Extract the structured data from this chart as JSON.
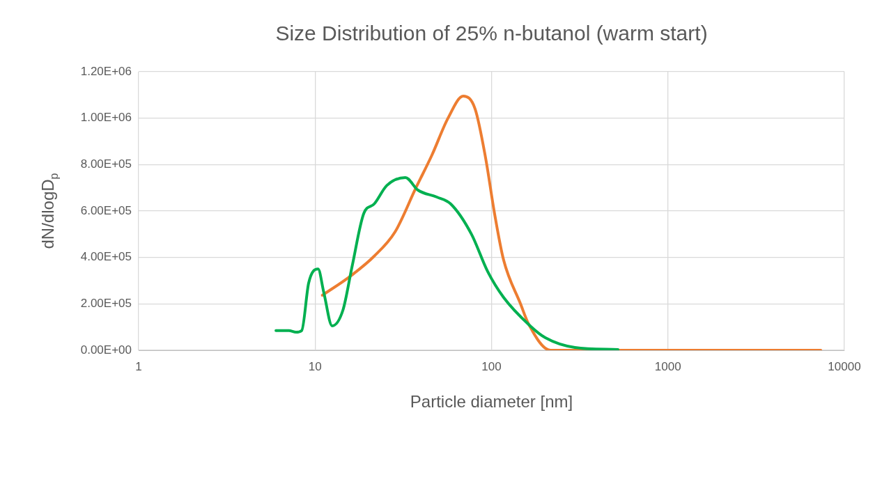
{
  "chart_data": {
    "type": "line",
    "title": "Size Distribution of 25% n-butanol (warm start)",
    "xlabel": "Particle diameter [nm]",
    "ylabel": "dN/dlogD$_{p}$",
    "log": "x",
    "xlim": [
      1,
      10000
    ],
    "xticks": [
      1,
      10,
      100,
      1000,
      10000
    ],
    "ylim": [
      0,
      1200000
    ],
    "yticks": [
      {
        "value": 0,
        "label": "0.00E+00"
      },
      {
        "value": 200000,
        "label": "2.00E+05"
      },
      {
        "value": 400000,
        "label": "4.00E+05"
      },
      {
        "value": 600000,
        "label": "6.00E+05"
      },
      {
        "value": 800000,
        "label": "8.00E+05"
      },
      {
        "value": 1000000,
        "label": "1.00E+06"
      },
      {
        "value": 1200000,
        "label": "1.20E+06"
      }
    ],
    "grid": true,
    "legend": false,
    "marker": "none",
    "line_style": "solid",
    "series": [
      {
        "color": "#00b050",
        "x": [
          6.0,
          7.1,
          7.8,
          8.4,
          9.2,
          10.4,
          11.2,
          12.5,
          14.4,
          16.2,
          18.9,
          21.6,
          25.5,
          32.5,
          38.3,
          49,
          58.8,
          77,
          95,
          117,
          164,
          202,
          297,
          521
        ],
        "values": [
          85000,
          85000,
          78000,
          85000,
          290000,
          350000,
          250000,
          105000,
          174000,
          360000,
          590000,
          630000,
          710000,
          744000,
          690000,
          660000,
          630000,
          500000,
          340000,
          228000,
          108000,
          54000,
          12000,
          3000
        ]
      },
      {
        "color": "#ed7d31",
        "x": [
          11.0,
          15.9,
          21.6,
          28.4,
          37.3,
          45.9,
          56.7,
          69.2,
          80.7,
          92.5,
          104,
          117,
          146,
          163,
          216,
          297,
          1000,
          7350
        ],
        "values": [
          237000,
          320000,
          405000,
          510000,
          700000,
          840000,
          1000000,
          1095000,
          1040000,
          830000,
          590000,
          390000,
          200000,
          110000,
          0,
          0,
          0,
          0
        ]
      }
    ]
  }
}
